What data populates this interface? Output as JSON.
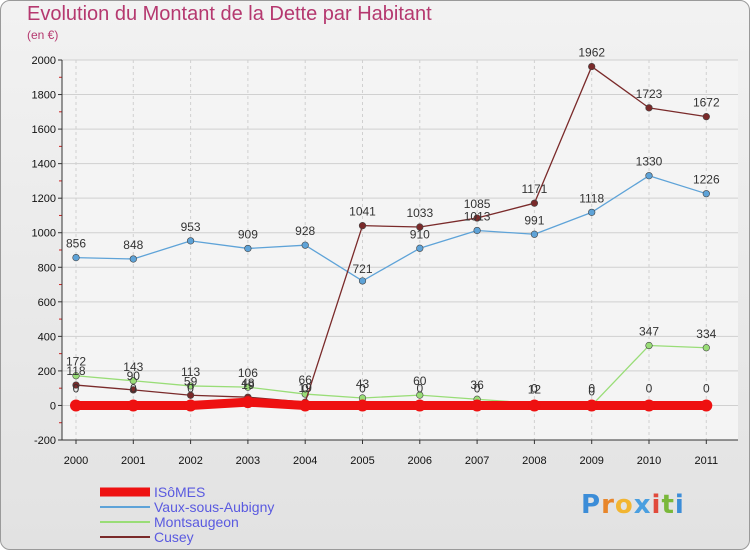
{
  "title": "Evolution du Montant de la Dette par Habitant",
  "subtitle": "(en €)",
  "logo": {
    "text": "Proxiti",
    "colors": [
      "#3c8dd8",
      "#e8862a",
      "#f2b531",
      "#4a9fe0",
      "#e14a3b",
      "#7ab83a",
      "#3c8dd8"
    ]
  },
  "chart_data": {
    "type": "line",
    "title": "Evolution du Montant de la Dette par Habitant",
    "subtitle": "(en €)",
    "x": [
      "2000",
      "2001",
      "2002",
      "2003",
      "2004",
      "2005",
      "2006",
      "2007",
      "2008",
      "2009",
      "2010",
      "2011"
    ],
    "ylim": [
      -200,
      2000
    ],
    "yticks": [
      "-200",
      "0",
      "200",
      "400",
      "600",
      "800",
      "1000",
      "1200",
      "1400",
      "1600",
      "1800",
      "2000"
    ],
    "grid": true,
    "legend_position": "bottom-left",
    "series": [
      {
        "name": "ISôMES",
        "color": "#ee1111",
        "values": [
          0,
          0,
          0,
          19,
          0,
          0,
          0,
          0,
          0,
          0,
          0,
          0
        ],
        "labels": [
          "0",
          "0",
          "0",
          "19",
          "0",
          "0",
          "0",
          "0",
          "0",
          "0",
          "0",
          "0"
        ]
      },
      {
        "name": "Vaux-sous-Aubigny",
        "color": "#5ea3d8",
        "values": [
          856,
          848,
          953,
          909,
          928,
          721,
          910,
          1013,
          991,
          1118,
          1330,
          1226
        ],
        "labels": [
          "856",
          "848",
          "953",
          "909",
          "928",
          "721",
          "910",
          "1013",
          "991",
          "1118",
          "1330",
          "1226"
        ]
      },
      {
        "name": "Montsaugeon",
        "color": "#99dd77",
        "values": [
          172,
          143,
          113,
          106,
          66,
          43,
          60,
          36,
          12,
          0,
          347,
          334
        ],
        "labels": [
          "172",
          "143",
          "113",
          "106",
          "66",
          "43",
          "60",
          "36",
          "12",
          "0",
          "347",
          "334"
        ]
      },
      {
        "name": "Cusey",
        "color": "#7a2a2a",
        "values": [
          118,
          90,
          59,
          48,
          19,
          1041,
          1033,
          1085,
          1171,
          1962,
          1723,
          1672
        ],
        "labels": [
          "118",
          "90",
          "59",
          "48",
          "19",
          "1041",
          "1033",
          "1085",
          "1171",
          "1962",
          "1723",
          "1672"
        ]
      }
    ]
  }
}
